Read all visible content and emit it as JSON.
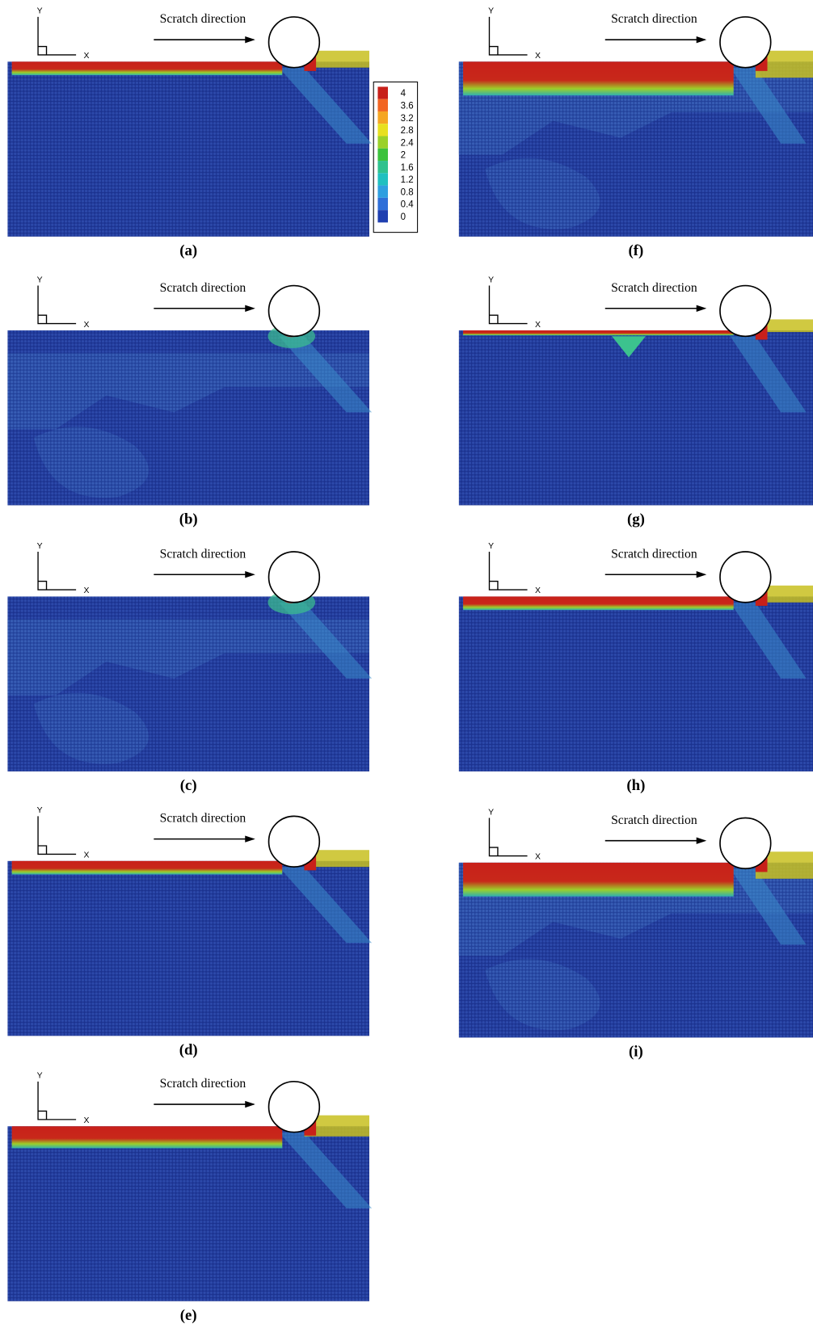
{
  "panels": [
    {
      "label": "(a)",
      "direction": "Scratch direction",
      "axis_y": "Y",
      "axis_x": "X"
    },
    {
      "label": "(b)",
      "direction": "Scratch direction",
      "axis_y": "Y",
      "axis_x": "X"
    },
    {
      "label": "(c)",
      "direction": "Scratch direction",
      "axis_y": "Y",
      "axis_x": "X"
    },
    {
      "label": "(d)",
      "direction": "Scratch direction",
      "axis_y": "Y",
      "axis_x": "X"
    },
    {
      "label": "(e)",
      "direction": "Scratch direction",
      "axis_y": "Y",
      "axis_x": "X"
    },
    {
      "label": "(f)",
      "direction": "Scratch direction",
      "axis_y": "Y",
      "axis_x": "X"
    },
    {
      "label": "(g)",
      "direction": "Scratch direction",
      "axis_y": "Y",
      "axis_x": "X"
    },
    {
      "label": "(h)",
      "direction": "Scratch direction",
      "axis_y": "Y",
      "axis_x": "X"
    },
    {
      "label": "(i)",
      "direction": "Scratch direction",
      "axis_y": "Y",
      "axis_x": "X"
    }
  ],
  "colorbar": {
    "labels": [
      "4",
      "3.6",
      "3.2",
      "2.8",
      "2.4",
      "2",
      "1.6",
      "1.2",
      "0.8",
      "0.4",
      "0"
    ]
  }
}
